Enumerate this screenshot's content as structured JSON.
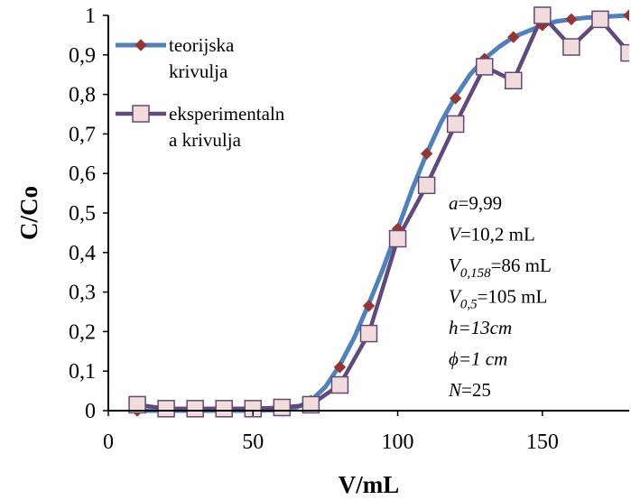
{
  "chart_data": {
    "type": "line",
    "xlabel": "V/mL",
    "ylabel": "C/Co",
    "xlim": [
      0,
      180
    ],
    "ylim": [
      0,
      1
    ],
    "x_ticks": [
      0,
      50,
      100,
      150
    ],
    "x_tick_labels": [
      "0",
      "50",
      "100",
      "150"
    ],
    "y_ticks": [
      0,
      0.1,
      0.2,
      0.3,
      0.4,
      0.5,
      0.6,
      0.7,
      0.8,
      0.9,
      1
    ],
    "y_tick_labels": [
      "0",
      "0,1",
      "0,2",
      "0,3",
      "0,4",
      "0,5",
      "0,6",
      "0,7",
      "0,8",
      "0,9",
      "1"
    ],
    "grid": false,
    "legend_position": "top-left",
    "series": [
      {
        "name": "teorijska krivulja",
        "legend_lines": [
          "teorijska",
          "krivulja"
        ],
        "line_color": "#4f81bd",
        "marker_color": "#943634",
        "marker": "diamond",
        "x": [
          10,
          20,
          30,
          40,
          50,
          60,
          70,
          80,
          90,
          100,
          110,
          120,
          130,
          140,
          150,
          160,
          170,
          180
        ],
        "y": [
          0.0,
          0.0,
          0.0,
          0.0,
          0.0,
          0.0,
          0.025,
          0.11,
          0.265,
          0.46,
          0.65,
          0.79,
          0.89,
          0.945,
          0.975,
          0.99,
          0.995,
          1.0
        ],
        "curve_x": [
          10,
          20,
          30,
          40,
          50,
          60,
          65,
          70,
          75,
          80,
          85,
          90,
          95,
          100,
          105,
          110,
          115,
          120,
          125,
          130,
          135,
          140,
          145,
          150,
          155,
          160,
          165,
          170,
          175,
          180
        ],
        "curve_y": [
          0.0,
          0.0,
          0.0,
          0.0,
          0.0,
          0.002,
          0.008,
          0.025,
          0.06,
          0.115,
          0.185,
          0.27,
          0.36,
          0.46,
          0.56,
          0.65,
          0.73,
          0.795,
          0.85,
          0.89,
          0.92,
          0.945,
          0.96,
          0.975,
          0.985,
          0.99,
          0.994,
          0.996,
          0.998,
          1.0
        ]
      },
      {
        "name": "eksperimentalna krivulja",
        "legend_lines": [
          "eksperimentaln",
          "a krivulja"
        ],
        "line_color": "#604a7b",
        "marker_color": "#f2dcdb",
        "marker": "square",
        "x": [
          10,
          20,
          30,
          40,
          50,
          60,
          70,
          80,
          90,
          100,
          110,
          120,
          130,
          140,
          150,
          160,
          170,
          180
        ],
        "y": [
          0.015,
          0.005,
          0.005,
          0.005,
          0.005,
          0.008,
          0.015,
          0.065,
          0.195,
          0.435,
          0.57,
          0.725,
          0.87,
          0.835,
          1.0,
          0.92,
          0.99,
          0.905
        ]
      }
    ],
    "annotations": [
      {
        "var": "a",
        "sub": "",
        "rest": "=9,99",
        "italic_all": false
      },
      {
        "var": "V",
        "sub": "",
        "rest": "=10,2 mL",
        "italic_all": false
      },
      {
        "var": "V",
        "sub": "0,158",
        "rest": "=86 mL",
        "italic_all": false
      },
      {
        "var": "V",
        "sub": "0,5",
        "rest": "=105 mL",
        "italic_all": false
      },
      {
        "var": "h",
        "sub": "",
        "rest": "=13cm",
        "italic_all": true
      },
      {
        "var": "ϕ",
        "sub": "",
        "rest": "=1 cm",
        "italic_all": true
      },
      {
        "var": "N",
        "sub": "",
        "rest": "=25",
        "italic_all": false
      }
    ]
  }
}
